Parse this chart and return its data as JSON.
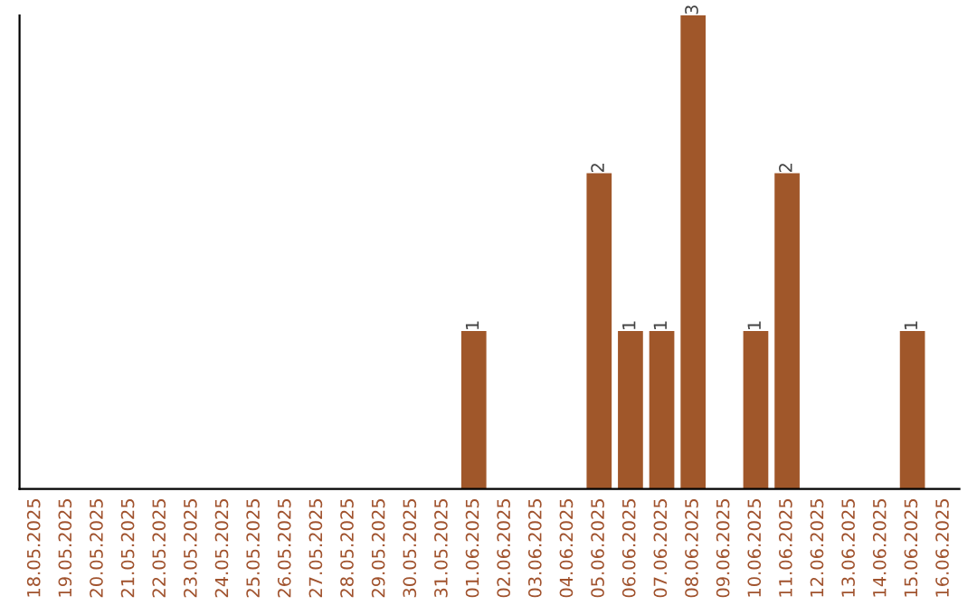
{
  "chart_data": {
    "type": "bar",
    "categories": [
      "18.05.2025",
      "19.05.2025",
      "20.05.2025",
      "21.05.2025",
      "22.05.2025",
      "23.05.2025",
      "24.05.2025",
      "25.05.2025",
      "26.05.2025",
      "27.05.2025",
      "28.05.2025",
      "29.05.2025",
      "30.05.2025",
      "31.05.2025",
      "01.06.2025",
      "02.06.2025",
      "03.06.2025",
      "04.06.2025",
      "05.06.2025",
      "06.06.2025",
      "07.06.2025",
      "08.06.2025",
      "09.06.2025",
      "10.06.2025",
      "11.06.2025",
      "12.06.2025",
      "13.06.2025",
      "14.06.2025",
      "15.06.2025",
      "16.06.2025"
    ],
    "values": [
      null,
      null,
      null,
      null,
      null,
      null,
      null,
      null,
      null,
      null,
      null,
      null,
      null,
      null,
      1,
      null,
      null,
      null,
      2,
      1,
      1,
      3,
      null,
      1,
      2,
      null,
      null,
      null,
      1,
      null
    ],
    "value_labels": [
      null,
      null,
      null,
      null,
      null,
      null,
      null,
      null,
      null,
      null,
      null,
      null,
      null,
      null,
      "1",
      null,
      null,
      null,
      "2",
      "1",
      "1",
      "3",
      null,
      "1",
      "2",
      null,
      null,
      null,
      "1",
      null
    ],
    "color": "#a0572a",
    "grid": false,
    "legend": false
  }
}
